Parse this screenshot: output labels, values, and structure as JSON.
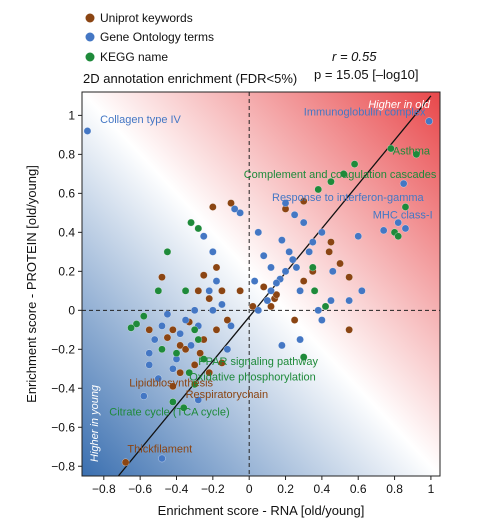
{
  "legend": [
    {
      "label": "Uniprot keywords",
      "color": "#8b4513"
    },
    {
      "label": "Gene Ontology terms",
      "color": "#4477c4"
    },
    {
      "label": "KEGG name",
      "color": "#1e8a3a"
    }
  ],
  "title": "2D annotation enrichment (FDR<5%)",
  "stats": {
    "r": "r = 0.55",
    "p": "p = 15.05 [–log10]"
  },
  "regions": {
    "old": "Higher in old",
    "young": "Higher in young"
  },
  "chart_data": {
    "type": "scatter",
    "title": "2D annotation enrichment (FDR<5%)",
    "xlabel": "Enrichment score - RNA [old/young]",
    "ylabel": "Enrichment score - PROTEIN [old/young]",
    "xlim": [
      -0.92,
      1.05
    ],
    "ylim": [
      -0.85,
      1.12
    ],
    "xticks": [
      -0.8,
      -0.6,
      -0.4,
      -0.2,
      0,
      0.2,
      0.4,
      0.6,
      0.8,
      1
    ],
    "xtick_labels": [
      "−0.8",
      "−0.6",
      "−0.4",
      "−0.2",
      "0",
      "0.2",
      "0.4",
      "0.6",
      "0.8",
      "1"
    ],
    "yticks": [
      -0.8,
      -0.6,
      -0.4,
      -0.2,
      0,
      0.2,
      0.4,
      0.6,
      0.8,
      1
    ],
    "ytick_labels": [
      "−0.8",
      "−0.6",
      "−0.4",
      "−0.2",
      "0",
      "0.2",
      "0.4",
      "0.6",
      "0.8",
      "1"
    ],
    "regression_line": {
      "x": [
        -0.72,
        1.0
      ],
      "y": [
        -0.85,
        1.1
      ]
    },
    "grid": false,
    "legend_position": "top-left",
    "series": [
      {
        "name": "Uniprot keywords",
        "color": "#8b4513",
        "points": [
          [
            -0.68,
            -0.78
          ],
          [
            -0.42,
            -0.39
          ],
          [
            -0.38,
            -0.32
          ],
          [
            -0.2,
            0.53
          ],
          [
            -0.18,
            0.22
          ],
          [
            -0.25,
            0.18
          ],
          [
            -0.28,
            0.1
          ],
          [
            -0.15,
            0.1
          ],
          [
            -0.22,
            0.06
          ],
          [
            -0.33,
            -0.06
          ],
          [
            -0.42,
            -0.1
          ],
          [
            -0.45,
            -0.14
          ],
          [
            -0.38,
            -0.18
          ],
          [
            -0.27,
            -0.22
          ],
          [
            -0.18,
            -0.1
          ],
          [
            -0.12,
            -0.05
          ],
          [
            -0.35,
            -0.2
          ],
          [
            -0.3,
            -0.28
          ],
          [
            -0.22,
            -0.32
          ],
          [
            -0.15,
            -0.27
          ],
          [
            -0.55,
            -0.1
          ],
          [
            -0.05,
            0.1
          ],
          [
            0.02,
            0.02
          ],
          [
            0.08,
            0.12
          ],
          [
            0.12,
            0.02
          ],
          [
            0.14,
            0.06
          ],
          [
            0.25,
            -0.05
          ],
          [
            0.3,
            0.15
          ],
          [
            0.35,
            0.2
          ],
          [
            0.44,
            0.3
          ],
          [
            0.5,
            0.24
          ],
          [
            0.55,
            0.17
          ],
          [
            0.3,
            0.56
          ],
          [
            0.2,
            0.52
          ],
          [
            0.45,
            0.35
          ],
          [
            -0.48,
            0.17
          ],
          [
            -0.1,
            0.55
          ],
          [
            0.15,
            0.08
          ],
          [
            0.55,
            -0.1
          ],
          [
            -0.25,
            -0.15
          ]
        ]
      },
      {
        "name": "Gene Ontology terms",
        "color": "#4477c4",
        "points": [
          [
            -0.89,
            0.92
          ],
          [
            0.99,
            0.97
          ],
          [
            0.85,
            0.65
          ],
          [
            0.82,
            0.45
          ],
          [
            0.86,
            0.42
          ],
          [
            0.74,
            0.41
          ],
          [
            0.2,
            0.55
          ],
          [
            0.25,
            0.49
          ],
          [
            0.3,
            0.45
          ],
          [
            0.18,
            0.36
          ],
          [
            0.22,
            0.3
          ],
          [
            0.24,
            0.26
          ],
          [
            0.26,
            0.22
          ],
          [
            0.2,
            0.2
          ],
          [
            0.17,
            0.16
          ],
          [
            0.15,
            0.14
          ],
          [
            0.12,
            0.1
          ],
          [
            0.1,
            0.05
          ],
          [
            0.05,
            0.0
          ],
          [
            0.03,
            0.15
          ],
          [
            0.08,
            0.28
          ],
          [
            0.28,
            0.1
          ],
          [
            0.6,
            0.38
          ],
          [
            0.62,
            0.1
          ],
          [
            0.55,
            0.05
          ],
          [
            0.45,
            0.05
          ],
          [
            0.38,
            0.0
          ],
          [
            0.4,
            -0.05
          ],
          [
            0.28,
            -0.15
          ],
          [
            0.18,
            -0.18
          ],
          [
            -0.05,
            0.5
          ],
          [
            -0.08,
            0.52
          ],
          [
            -0.2,
            0.3
          ],
          [
            -0.25,
            0.38
          ],
          [
            -0.22,
            0.1
          ],
          [
            -0.3,
            0.0
          ],
          [
            -0.35,
            -0.05
          ],
          [
            -0.38,
            -0.12
          ],
          [
            -0.28,
            -0.08
          ],
          [
            -0.32,
            -0.18
          ],
          [
            -0.4,
            -0.25
          ],
          [
            -0.45,
            -0.02
          ],
          [
            -0.48,
            -0.08
          ],
          [
            -0.52,
            -0.15
          ],
          [
            -0.55,
            -0.22
          ],
          [
            -0.2,
            0.0
          ],
          [
            -0.15,
            0.03
          ],
          [
            -0.1,
            -0.08
          ],
          [
            -0.42,
            -0.3
          ],
          [
            -0.5,
            -0.35
          ],
          [
            -0.55,
            -0.28
          ],
          [
            -0.58,
            -0.44
          ],
          [
            -0.48,
            -0.76
          ],
          [
            -0.28,
            -0.46
          ],
          [
            -0.12,
            -0.2
          ],
          [
            -0.18,
            0.15
          ],
          [
            0.12,
            0.22
          ],
          [
            0.33,
            0.3
          ],
          [
            0.4,
            0.4
          ],
          [
            0.46,
            0.2
          ],
          [
            0.35,
            0.35
          ],
          [
            0.05,
            0.4
          ]
        ]
      },
      {
        "name": "KEGG name",
        "color": "#1e8a3a",
        "points": [
          [
            0.78,
            0.83
          ],
          [
            0.92,
            0.8
          ],
          [
            0.58,
            0.75
          ],
          [
            0.52,
            0.7
          ],
          [
            0.45,
            0.66
          ],
          [
            0.38,
            0.62
          ],
          [
            0.86,
            0.53
          ],
          [
            0.8,
            0.4
          ],
          [
            0.82,
            0.38
          ],
          [
            0.3,
            -0.24
          ],
          [
            -0.33,
            -0.32
          ],
          [
            -0.3,
            -0.38
          ],
          [
            -0.36,
            -0.5
          ],
          [
            -0.42,
            -0.47
          ],
          [
            -0.62,
            -0.07
          ],
          [
            -0.65,
            -0.09
          ],
          [
            -0.58,
            -0.03
          ],
          [
            -0.32,
            0.45
          ],
          [
            -0.28,
            0.42
          ],
          [
            -0.45,
            0.3
          ],
          [
            -0.5,
            0.1
          ],
          [
            -0.35,
            0.1
          ],
          [
            -0.48,
            -0.2
          ],
          [
            -0.4,
            -0.22
          ],
          [
            -0.28,
            -0.15
          ],
          [
            -0.25,
            -0.25
          ],
          [
            -0.3,
            -0.1
          ],
          [
            0.36,
            0.1
          ],
          [
            0.42,
            0.02
          ],
          [
            0.35,
            0.22
          ]
        ]
      }
    ],
    "annotations": [
      {
        "text": "Collagen type IV",
        "x": -0.82,
        "y": 0.96,
        "color": "#4477c4",
        "anchor": "start"
      },
      {
        "text": "Immunoglobulin complex",
        "x": 0.97,
        "y": 1.0,
        "color": "#4477c4",
        "anchor": "end"
      },
      {
        "text": "Asthma",
        "x": 0.79,
        "y": 0.8,
        "color": "#1e8a3a",
        "anchor": "start"
      },
      {
        "text": "Complement and coagulation cascades",
        "x": 1.03,
        "y": 0.68,
        "color": "#1e8a3a",
        "anchor": "end"
      },
      {
        "text": "Response to interferon-gamma",
        "x": 0.96,
        "y": 0.56,
        "color": "#4477c4",
        "anchor": "end"
      },
      {
        "text": "MHC class-I",
        "x": 0.68,
        "y": 0.47,
        "color": "#4477c4",
        "anchor": "start"
      },
      {
        "text": "PPAR signaling pathway",
        "x": -0.28,
        "y": -0.28,
        "color": "#1e8a3a",
        "anchor": "start"
      },
      {
        "text": "Oxidative phosphorylation",
        "x": -0.33,
        "y": -0.36,
        "color": "#1e8a3a",
        "anchor": "start"
      },
      {
        "text": "Lipidbiosynthesis",
        "x": -0.66,
        "y": -0.39,
        "color": "#8b4513",
        "anchor": "start"
      },
      {
        "text": "Respiratorychain",
        "x": -0.35,
        "y": -0.45,
        "color": "#8b4513",
        "anchor": "start"
      },
      {
        "text": "Citrate cycle (TCA cycle)",
        "x": -0.77,
        "y": -0.54,
        "color": "#1e8a3a",
        "anchor": "start"
      },
      {
        "text": "Thickfilament",
        "x": -0.67,
        "y": -0.73,
        "color": "#8b4513",
        "anchor": "start"
      }
    ]
  }
}
